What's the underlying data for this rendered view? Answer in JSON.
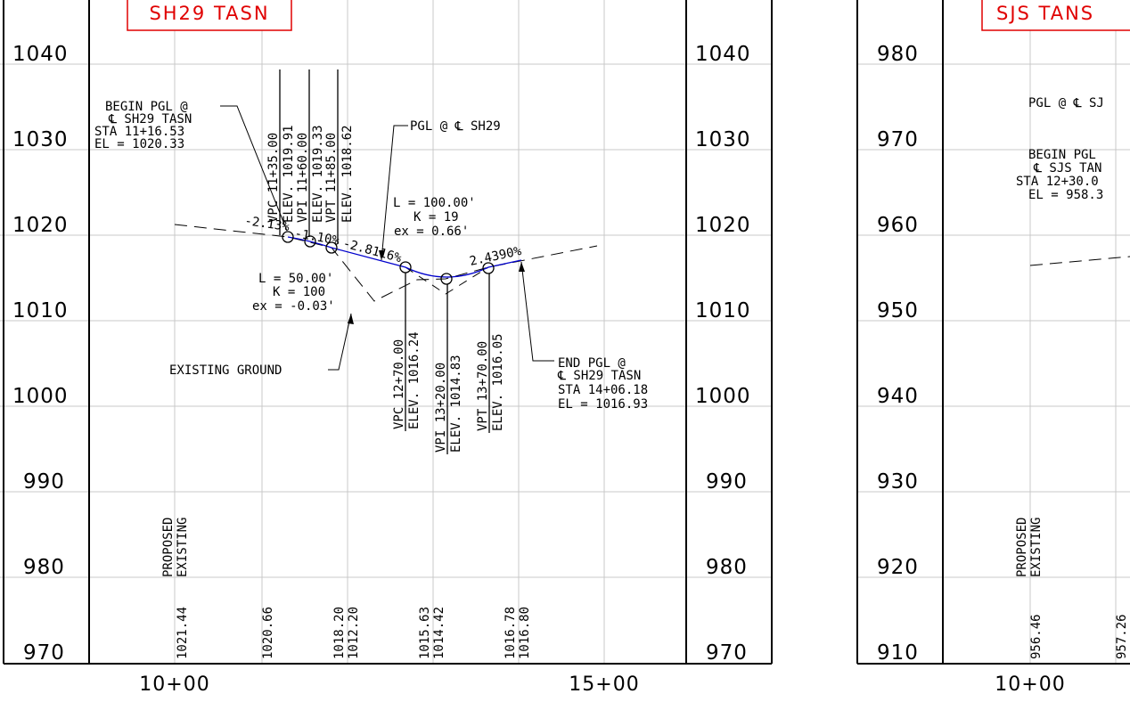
{
  "left_sheet": {
    "title": "SH29 TASN",
    "elevations": [
      "1040",
      "1030",
      "1020",
      "1010",
      "1000",
      "990",
      "980",
      "970"
    ],
    "stations": [
      "10+00",
      "15+00"
    ],
    "begin_pgl": [
      "BEGIN PGL @",
      "℄ SH29 TASN",
      "STA 11+16.53",
      "EL = 1020.33"
    ],
    "pgl_label": "PGL @ ℄ SH29",
    "end_pgl": [
      "END PGL @",
      "℄ SH29 TASN",
      "STA 14+06.18",
      "EL = 1016.93"
    ],
    "existing_ground": "EXISTING GROUND",
    "vc1": [
      "L = 50.00'",
      "K = 100",
      "ex = -0.03'"
    ],
    "vc2": [
      "L = 100.00'",
      "K = 19",
      "ex = 0.66'"
    ],
    "grades": [
      "-2.13%",
      "-1.10%",
      "-2.8116%",
      "2.4390%"
    ],
    "vertical_labels": [
      [
        "VPC 11+35.00",
        "ELEV. 1019.91"
      ],
      [
        "VPI 11+60.00",
        "ELEV. 1019.33"
      ],
      [
        "VPT 11+85.00",
        "ELEV. 1018.62"
      ],
      [
        "VPC 12+70.00",
        "ELEV. 1016.24"
      ],
      [
        "VPI 13+20.00",
        "ELEV. 1014.83"
      ],
      [
        "VPT 13+70.00",
        "ELEV. 1016.05"
      ]
    ],
    "legend": [
      "PROPOSED",
      "EXISTING"
    ],
    "profile_values": [
      [
        "1021.44"
      ],
      [
        "1020.66"
      ],
      [
        "1018.20",
        "1012.20"
      ],
      [
        "1015.63",
        "1014.42"
      ],
      [
        "1016.78",
        "1016.80"
      ]
    ]
  },
  "right_sheet": {
    "title": "SJS TANS",
    "elevations": [
      "980",
      "970",
      "960",
      "950",
      "940",
      "930",
      "920",
      "910"
    ],
    "stations": [
      "10+00"
    ],
    "pgl_label": "PGL @ ℄ SJ",
    "begin_pgl": [
      "BEGIN PGL",
      "℄ SJS TAN",
      "STA 12+30.0",
      "EL = 958.3"
    ],
    "legend": [
      "PROPOSED",
      "EXISTING"
    ],
    "profile_values": [
      [
        "956.46"
      ],
      [
        "957.26"
      ]
    ]
  },
  "colors": {
    "title": "#e00000",
    "profile": "#0000cc",
    "grid": "#c8c8c8",
    "line": "#000000"
  }
}
